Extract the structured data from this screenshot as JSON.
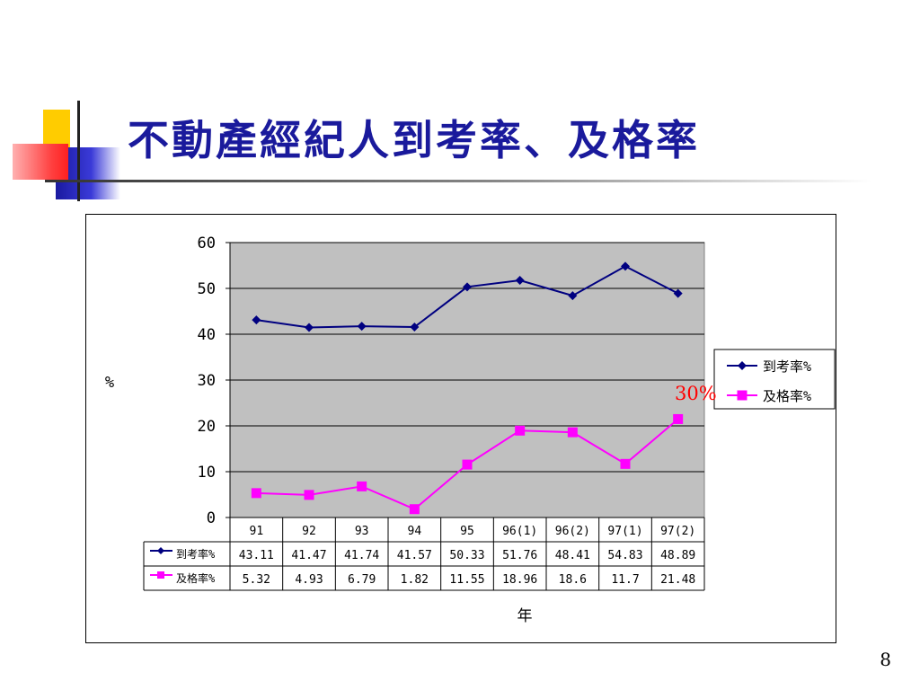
{
  "slide": {
    "title": "不動產經紀人到考率、及格率",
    "page_number": "8",
    "annotation": "30%"
  },
  "colors": {
    "title": "#1a1a9c",
    "series_1": "#000080",
    "series_2": "#ff00ff",
    "plot_bg": "#c0c0c0",
    "annotation": "#ff0000"
  },
  "chart_data": {
    "type": "line",
    "title": "",
    "ylabel": "%",
    "xlabel": "年",
    "ylim": [
      0,
      60
    ],
    "yticks": [
      0,
      10,
      20,
      30,
      40,
      50,
      60
    ],
    "grid": true,
    "legend_position": "right",
    "categories": [
      "91",
      "92",
      "93",
      "94",
      "95",
      "96(1)",
      "96(2)",
      "97(1)",
      "97(2)"
    ],
    "series": [
      {
        "name": "到考率%",
        "marker": "diamond",
        "values": [
          43.11,
          41.47,
          41.74,
          41.57,
          50.33,
          51.76,
          48.41,
          54.83,
          48.89
        ],
        "labels": [
          "43.11",
          "41.47",
          "41.74",
          "41.57",
          "50.33",
          "51.76",
          "48.41",
          "54.83",
          "48.89"
        ]
      },
      {
        "name": "及格率%",
        "marker": "square",
        "values": [
          5.32,
          4.93,
          6.79,
          1.82,
          11.55,
          18.96,
          18.6,
          11.7,
          21.48
        ],
        "labels": [
          "5.32",
          "4.93",
          "6.79",
          "1.82",
          "11.55",
          "18.96",
          "18.6",
          "11.7",
          "21.48"
        ]
      }
    ]
  }
}
